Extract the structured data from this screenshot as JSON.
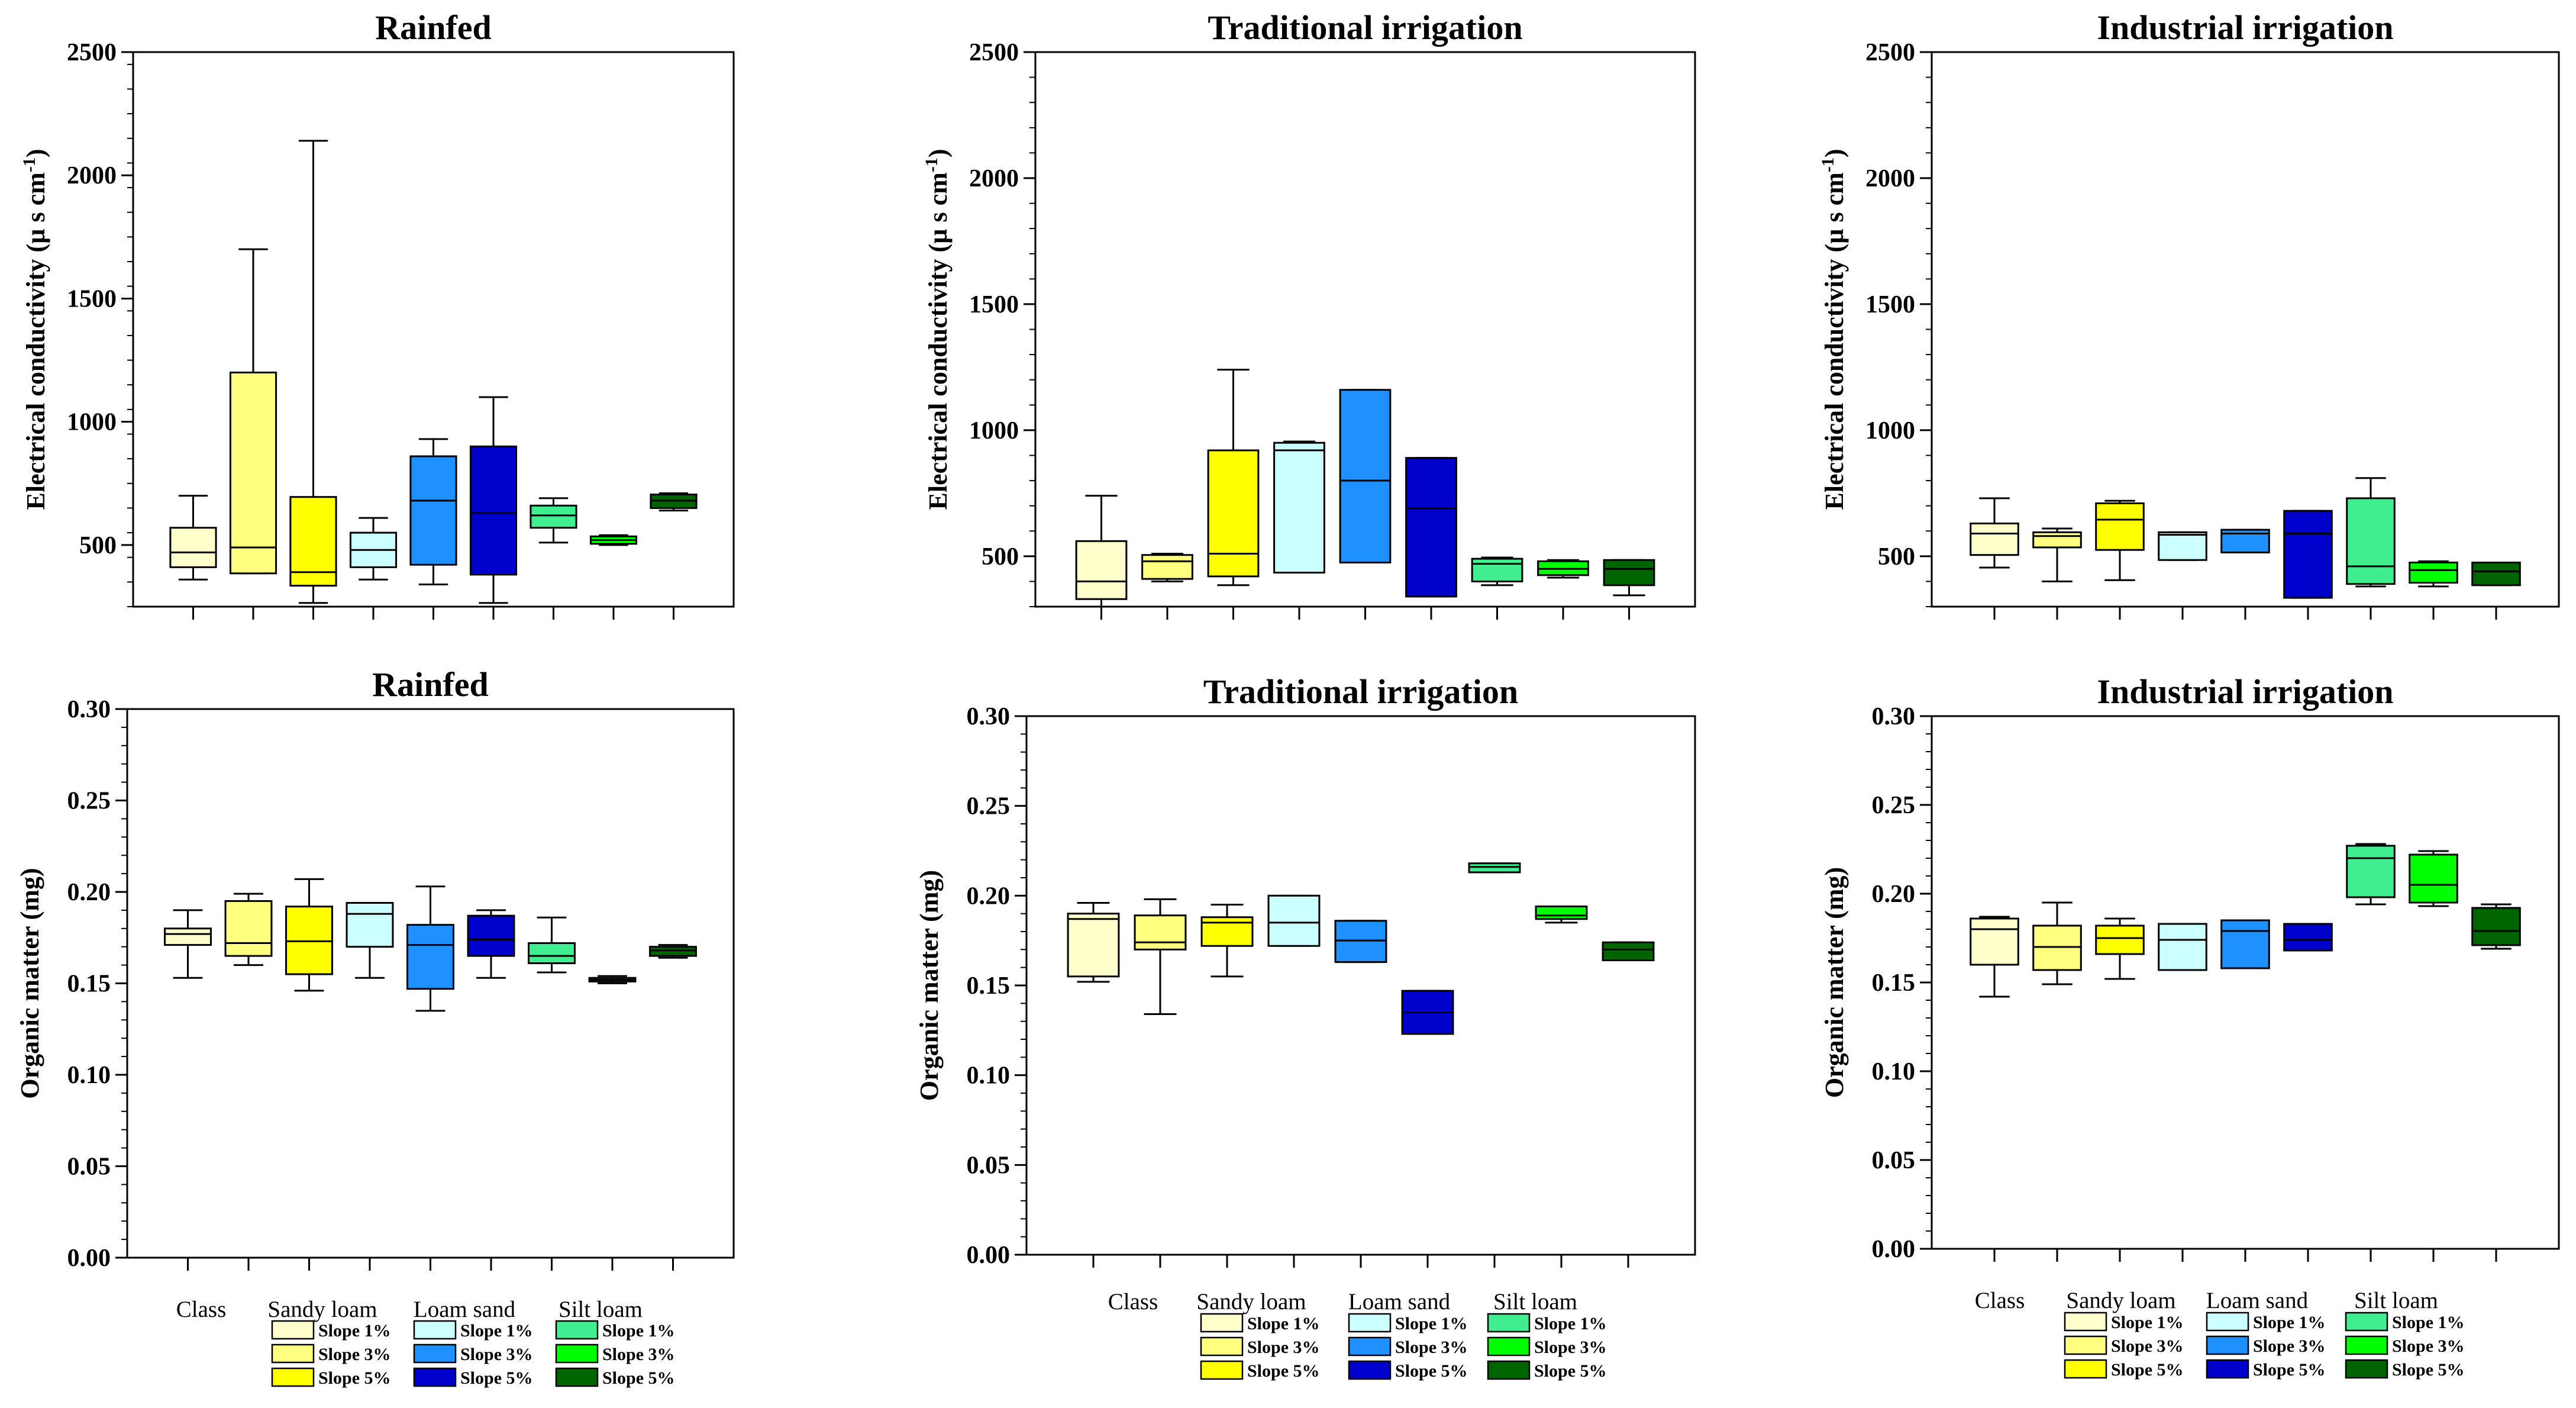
{
  "legend": {
    "class_label": "Class",
    "textures": [
      "Sandy loam",
      "Loam sand",
      "Silt loam"
    ],
    "slopes": [
      "Slope 1%",
      "Slope 3%",
      "Slope 5%"
    ],
    "colors": [
      "#ffffcc",
      "#ffff80",
      "#ffff00",
      "#ccffff",
      "#1e90ff",
      "#0000cd",
      "#40ee90",
      "#00ff00",
      "#006400"
    ]
  },
  "chart_data": [
    {
      "type": "boxplot",
      "title": "Rainfed",
      "ylabel": "Electrical conductivity (µ s cm",
      "ylabel_superscript": "-1",
      "ylim": [
        250,
        2500
      ],
      "yticks": [
        "500",
        "1000",
        "1500",
        "2000",
        "2500"
      ],
      "series": [
        {
          "name": "Sandy loam Slope 1%",
          "stats": [
            360,
            410,
            470,
            570,
            700
          ]
        },
        {
          "name": "Sandy loam Slope 3%",
          "stats": [
            385,
            385,
            490,
            1200,
            1700
          ]
        },
        {
          "name": "Sandy loam Slope 5%",
          "stats": [
            265,
            335,
            390,
            695,
            2140
          ]
        },
        {
          "name": "Loam sand Slope 1%",
          "stats": [
            360,
            410,
            480,
            550,
            610
          ]
        },
        {
          "name": "Loam sand Slope 3%",
          "stats": [
            340,
            420,
            680,
            860,
            930
          ]
        },
        {
          "name": "Loam sand Slope 5%",
          "stats": [
            265,
            380,
            630,
            900,
            1100
          ]
        },
        {
          "name": "Silt loam Slope 1%",
          "stats": [
            510,
            570,
            620,
            660,
            690
          ]
        },
        {
          "name": "Silt loam Slope 3%",
          "stats": [
            500,
            505,
            520,
            535,
            540
          ]
        },
        {
          "name": "Silt loam Slope 5%",
          "stats": [
            640,
            650,
            680,
            705,
            710
          ]
        }
      ]
    },
    {
      "type": "boxplot",
      "title": "Traditional irrigation",
      "ylabel": "Electrical conductivity (µ s cm",
      "ylabel_superscript": "-1",
      "ylim": [
        300,
        2500
      ],
      "yticks": [
        "500",
        "1000",
        "1500",
        "2000",
        "2500"
      ],
      "series": [
        {
          "name": "Sandy loam Slope 1%",
          "stats": [
            300,
            330,
            400,
            560,
            740
          ]
        },
        {
          "name": "Sandy loam Slope 3%",
          "stats": [
            400,
            410,
            480,
            505,
            510
          ]
        },
        {
          "name": "Sandy loam Slope 5%",
          "stats": [
            385,
            420,
            510,
            920,
            1240
          ]
        },
        {
          "name": "Loam sand Slope 1%",
          "stats": [
            435,
            435,
            920,
            950,
            955
          ]
        },
        {
          "name": "Loam sand Slope 3%",
          "stats": [
            475,
            475,
            800,
            1160,
            1160
          ]
        },
        {
          "name": "Loam sand Slope 5%",
          "stats": [
            340,
            340,
            690,
            890,
            890
          ]
        },
        {
          "name": "Silt loam Slope 1%",
          "stats": [
            385,
            400,
            470,
            490,
            495
          ]
        },
        {
          "name": "Silt loam Slope 3%",
          "stats": [
            415,
            425,
            450,
            480,
            485
          ]
        },
        {
          "name": "Silt loam Slope 5%",
          "stats": [
            345,
            385,
            450,
            485,
            485
          ]
        }
      ]
    },
    {
      "type": "boxplot",
      "title": "Industrial irrigation",
      "ylabel": "Electrical conductivity (µ s cm",
      "ylabel_superscript": "-1",
      "ylim": [
        300,
        2500
      ],
      "yticks": [
        "500",
        "1000",
        "1500",
        "2000",
        "2500"
      ],
      "series": [
        {
          "name": "Sandy loam Slope 1%",
          "stats": [
            455,
            505,
            590,
            630,
            730
          ]
        },
        {
          "name": "Sandy loam Slope 3%",
          "stats": [
            400,
            535,
            580,
            595,
            610
          ]
        },
        {
          "name": "Sandy loam Slope 5%",
          "stats": [
            405,
            525,
            645,
            710,
            720
          ]
        },
        {
          "name": "Loam sand Slope 1%",
          "stats": [
            485,
            485,
            585,
            595,
            595
          ]
        },
        {
          "name": "Loam sand Slope 3%",
          "stats": [
            515,
            515,
            590,
            605,
            605
          ]
        },
        {
          "name": "Loam sand Slope 5%",
          "stats": [
            335,
            335,
            590,
            680,
            680
          ]
        },
        {
          "name": "Silt loam Slope 1%",
          "stats": [
            380,
            390,
            460,
            730,
            810
          ]
        },
        {
          "name": "Silt loam Slope 3%",
          "stats": [
            380,
            395,
            445,
            475,
            480
          ]
        },
        {
          "name": "Silt loam Slope 5%",
          "stats": [
            385,
            385,
            440,
            475,
            475
          ]
        }
      ]
    },
    {
      "type": "boxplot",
      "title": "Rainfed",
      "ylabel": "Organic matter (mg)",
      "ylim": [
        0,
        0.3
      ],
      "yticks": [
        "0.00",
        "0.05",
        "0.10",
        "0.15",
        "0.20",
        "0.25",
        "0.30"
      ],
      "series": [
        {
          "name": "Sandy loam Slope 1%",
          "stats": [
            0.153,
            0.171,
            0.177,
            0.18,
            0.19
          ]
        },
        {
          "name": "Sandy loam Slope 3%",
          "stats": [
            0.16,
            0.165,
            0.172,
            0.195,
            0.199
          ]
        },
        {
          "name": "Sandy loam Slope 5%",
          "stats": [
            0.146,
            0.155,
            0.173,
            0.192,
            0.207
          ]
        },
        {
          "name": "Loam sand Slope 1%",
          "stats": [
            0.153,
            0.17,
            0.188,
            0.194,
            0.194
          ]
        },
        {
          "name": "Loam sand Slope 3%",
          "stats": [
            0.135,
            0.147,
            0.171,
            0.182,
            0.203
          ]
        },
        {
          "name": "Loam sand Slope 5%",
          "stats": [
            0.153,
            0.165,
            0.174,
            0.187,
            0.19
          ]
        },
        {
          "name": "Silt loam Slope 1%",
          "stats": [
            0.156,
            0.161,
            0.165,
            0.172,
            0.186
          ]
        },
        {
          "name": "Silt loam Slope 3%",
          "stats": [
            0.15,
            0.151,
            0.152,
            0.153,
            0.154
          ]
        },
        {
          "name": "Silt loam Slope 5%",
          "stats": [
            0.164,
            0.165,
            0.168,
            0.17,
            0.171
          ]
        }
      ]
    },
    {
      "type": "boxplot",
      "title": "Traditional irrigation",
      "ylabel": "Organic matter (mg)",
      "ylim": [
        0,
        0.3
      ],
      "yticks": [
        "0.00",
        "0.05",
        "0.10",
        "0.15",
        "0.20",
        "0.25",
        "0.30"
      ],
      "series": [
        {
          "name": "Sandy loam Slope 1%",
          "stats": [
            0.152,
            0.155,
            0.187,
            0.19,
            0.196
          ]
        },
        {
          "name": "Sandy loam Slope 3%",
          "stats": [
            0.134,
            0.17,
            0.174,
            0.189,
            0.198
          ]
        },
        {
          "name": "Sandy loam Slope 5%",
          "stats": [
            0.155,
            0.172,
            0.185,
            0.188,
            0.195
          ]
        },
        {
          "name": "Loam sand Slope 1%",
          "stats": [
            0.172,
            0.172,
            0.185,
            0.2,
            0.2
          ]
        },
        {
          "name": "Loam sand Slope 3%",
          "stats": [
            0.163,
            0.163,
            0.175,
            0.186,
            0.186
          ]
        },
        {
          "name": "Loam sand Slope 5%",
          "stats": [
            0.123,
            0.123,
            0.135,
            0.147,
            0.147
          ]
        },
        {
          "name": "Silt loam Slope 1%",
          "stats": [
            0.213,
            0.213,
            0.216,
            0.218,
            0.218
          ]
        },
        {
          "name": "Silt loam Slope 3%",
          "stats": [
            0.185,
            0.187,
            0.189,
            0.194,
            0.194
          ]
        },
        {
          "name": "Silt loam Slope 5%",
          "stats": [
            0.164,
            0.164,
            0.17,
            0.174,
            0.174
          ]
        }
      ]
    },
    {
      "type": "boxplot",
      "title": "Industrial irrigation",
      "ylabel": "Organic matter (mg)",
      "ylim": [
        0,
        0.3
      ],
      "yticks": [
        "0.00",
        "0.05",
        "0.10",
        "0.15",
        "0.20",
        "0.25",
        "0.30"
      ],
      "series": [
        {
          "name": "Sandy loam Slope 1%",
          "stats": [
            0.142,
            0.16,
            0.18,
            0.186,
            0.187
          ]
        },
        {
          "name": "Sandy loam Slope 3%",
          "stats": [
            0.149,
            0.157,
            0.17,
            0.182,
            0.195
          ]
        },
        {
          "name": "Sandy loam Slope 5%",
          "stats": [
            0.152,
            0.166,
            0.175,
            0.182,
            0.186
          ]
        },
        {
          "name": "Loam sand Slope 1%",
          "stats": [
            0.157,
            0.157,
            0.174,
            0.183,
            0.183
          ]
        },
        {
          "name": "Loam sand Slope 3%",
          "stats": [
            0.158,
            0.158,
            0.179,
            0.185,
            0.185
          ]
        },
        {
          "name": "Loam sand Slope 5%",
          "stats": [
            0.168,
            0.168,
            0.174,
            0.183,
            0.183
          ]
        },
        {
          "name": "Silt loam Slope 1%",
          "stats": [
            0.194,
            0.198,
            0.22,
            0.227,
            0.228
          ]
        },
        {
          "name": "Silt loam Slope 3%",
          "stats": [
            0.193,
            0.195,
            0.205,
            0.222,
            0.224
          ]
        },
        {
          "name": "Silt loam Slope 5%",
          "stats": [
            0.169,
            0.171,
            0.179,
            0.192,
            0.194
          ]
        }
      ]
    }
  ]
}
